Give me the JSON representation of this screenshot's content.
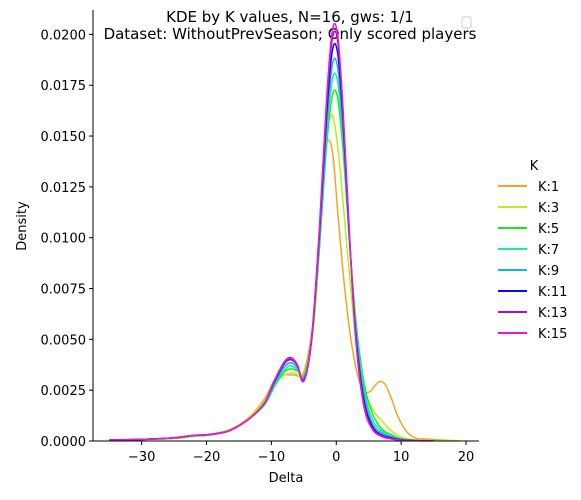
{
  "chart_data": {
    "type": "line",
    "title_line1": "KDE by K values, N=16, gws: 1/1",
    "title_line2": "Dataset: WithoutPrevSeason; Only scored players",
    "xlabel": "Delta",
    "ylabel": "Density",
    "xlim": [
      -37.5,
      22
    ],
    "ylim": [
      0,
      0.0212
    ],
    "x_ticks": [
      -30,
      -20,
      -10,
      0,
      10,
      20
    ],
    "x_tick_labels": [
      "−30",
      "−20",
      "−10",
      "0",
      "10",
      "20"
    ],
    "y_ticks": [
      0,
      0.0025,
      0.005,
      0.0075,
      0.01,
      0.0125,
      0.015,
      0.0175,
      0.02
    ],
    "y_tick_labels": [
      "0.0000",
      "0.0025",
      "0.0050",
      "0.0075",
      "0.0100",
      "0.0125",
      "0.0150",
      "0.0175",
      "0.0200"
    ],
    "legend_title": "K",
    "legend_position": "right",
    "series": [
      {
        "name": "K:1",
        "color": "#f5a41d",
        "points": [
          [
            -35,
            5e-05
          ],
          [
            -30,
            8e-05
          ],
          [
            -25,
            0.00012
          ],
          [
            -22,
            0.00022
          ],
          [
            -20,
            0.0003
          ],
          [
            -17,
            0.0005
          ],
          [
            -15,
            0.0008
          ],
          [
            -13,
            0.0013
          ],
          [
            -11,
            0.0021
          ],
          [
            -9.5,
            0.003
          ],
          [
            -8,
            0.00325
          ],
          [
            -6.5,
            0.00325
          ],
          [
            -5,
            0.0034
          ],
          [
            -3.5,
            0.006
          ],
          [
            -2.5,
            0.01
          ],
          [
            -1.8,
            0.014
          ],
          [
            -1.2,
            0.0148
          ],
          [
            -0.5,
            0.014
          ],
          [
            0.3,
            0.011
          ],
          [
            1.3,
            0.0075
          ],
          [
            2.5,
            0.0045
          ],
          [
            3.8,
            0.0027
          ],
          [
            5,
            0.0024
          ],
          [
            6.5,
            0.0029
          ],
          [
            7.5,
            0.0028
          ],
          [
            8.5,
            0.0021
          ],
          [
            9.5,
            0.0012
          ],
          [
            11,
            0.0004
          ],
          [
            12.5,
            0.00012
          ],
          [
            14,
            0.0001
          ],
          [
            16,
            5e-05
          ],
          [
            19,
            1e-05
          ]
        ]
      },
      {
        "name": "K:3",
        "color": "#b4f30f",
        "points": [
          [
            -35,
            5e-05
          ],
          [
            -30,
            8e-05
          ],
          [
            -25,
            0.00013
          ],
          [
            -22,
            0.00022
          ],
          [
            -20,
            0.00028
          ],
          [
            -17,
            0.00048
          ],
          [
            -15,
            0.00078
          ],
          [
            -13,
            0.00128
          ],
          [
            -11,
            0.002
          ],
          [
            -9.5,
            0.00285
          ],
          [
            -8,
            0.00325
          ],
          [
            -6.5,
            0.00335
          ],
          [
            -5,
            0.0033
          ],
          [
            -3.5,
            0.0056
          ],
          [
            -2.5,
            0.01
          ],
          [
            -1.6,
            0.0145
          ],
          [
            -0.9,
            0.016
          ],
          [
            -0.2,
            0.0155
          ],
          [
            0.7,
            0.013
          ],
          [
            1.8,
            0.009
          ],
          [
            3,
            0.005
          ],
          [
            4.2,
            0.0027
          ],
          [
            5.5,
            0.0016
          ],
          [
            7,
            0.001
          ],
          [
            8.5,
            0.0005
          ],
          [
            10,
            0.0002
          ],
          [
            12,
            6e-05
          ],
          [
            15,
            2e-05
          ],
          [
            19,
            1e-05
          ]
        ]
      },
      {
        "name": "K:5",
        "color": "#1ee81a",
        "points": [
          [
            -35,
            5e-05
          ],
          [
            -30,
            8e-05
          ],
          [
            -25,
            0.00014
          ],
          [
            -22,
            0.00025
          ],
          [
            -20,
            0.00028
          ],
          [
            -17,
            0.00045
          ],
          [
            -15,
            0.00075
          ],
          [
            -13,
            0.0012
          ],
          [
            -11,
            0.0018
          ],
          [
            -9.5,
            0.0027
          ],
          [
            -8,
            0.0034
          ],
          [
            -7,
            0.00355
          ],
          [
            -6,
            0.00345
          ],
          [
            -5,
            0.0032
          ],
          [
            -3.8,
            0.005
          ],
          [
            -2.6,
            0.0095
          ],
          [
            -1.5,
            0.0145
          ],
          [
            -0.6,
            0.017
          ],
          [
            0.2,
            0.0169
          ],
          [
            1,
            0.0145
          ],
          [
            2,
            0.01
          ],
          [
            3,
            0.006
          ],
          [
            4.2,
            0.003
          ],
          [
            5.5,
            0.0014
          ],
          [
            7,
            0.0006
          ],
          [
            8.5,
            0.0003
          ],
          [
            10,
            0.00012
          ],
          [
            12,
            4e-05
          ],
          [
            15,
            1e-05
          ]
        ]
      },
      {
        "name": "K:7",
        "color": "#14f093",
        "points": [
          [
            -35,
            5e-05
          ],
          [
            -30,
            8e-05
          ],
          [
            -25,
            0.00015
          ],
          [
            -22,
            0.00025
          ],
          [
            -20,
            0.00028
          ],
          [
            -17,
            0.00045
          ],
          [
            -15,
            0.00075
          ],
          [
            -13,
            0.0012
          ],
          [
            -11,
            0.0018
          ],
          [
            -9.5,
            0.00275
          ],
          [
            -8,
            0.0035
          ],
          [
            -7,
            0.0037
          ],
          [
            -6,
            0.0035
          ],
          [
            -5,
            0.0031
          ],
          [
            -3.8,
            0.005
          ],
          [
            -2.6,
            0.0098
          ],
          [
            -1.5,
            0.015
          ],
          [
            -0.6,
            0.0178
          ],
          [
            0.2,
            0.0177
          ],
          [
            1,
            0.015
          ],
          [
            2,
            0.01
          ],
          [
            3,
            0.0058
          ],
          [
            4.2,
            0.0027
          ],
          [
            5.5,
            0.0011
          ],
          [
            7,
            0.0005
          ],
          [
            8.5,
            0.00025
          ],
          [
            10,
            0.0001
          ],
          [
            12,
            3e-05
          ],
          [
            15,
            1e-05
          ]
        ]
      },
      {
        "name": "K:9",
        "color": "#12b4e6",
        "points": [
          [
            -35,
            5e-05
          ],
          [
            -30,
            8e-05
          ],
          [
            -25,
            0.00015
          ],
          [
            -22,
            0.00027
          ],
          [
            -20,
            0.0003
          ],
          [
            -17,
            0.00045
          ],
          [
            -15,
            0.00075
          ],
          [
            -13,
            0.0012
          ],
          [
            -11,
            0.00185
          ],
          [
            -9.5,
            0.00285
          ],
          [
            -8,
            0.00365
          ],
          [
            -7,
            0.00385
          ],
          [
            -6,
            0.0036
          ],
          [
            -5,
            0.00305
          ],
          [
            -3.8,
            0.005
          ],
          [
            -2.6,
            0.01
          ],
          [
            -1.5,
            0.0155
          ],
          [
            -0.6,
            0.0185
          ],
          [
            0.2,
            0.0184
          ],
          [
            1,
            0.0155
          ],
          [
            2,
            0.01
          ],
          [
            3,
            0.0055
          ],
          [
            4.2,
            0.0024
          ],
          [
            5.5,
            0.0009
          ],
          [
            7,
            0.0004
          ],
          [
            8.5,
            0.0002
          ],
          [
            10,
            8e-05
          ],
          [
            12,
            2e-05
          ],
          [
            15,
            1e-05
          ]
        ]
      },
      {
        "name": "K:11",
        "color": "#0a0af5",
        "points": [
          [
            -35,
            5e-05
          ],
          [
            -30,
            8e-05
          ],
          [
            -25,
            0.00016
          ],
          [
            -22,
            0.00028
          ],
          [
            -20,
            0.0003
          ],
          [
            -17,
            0.00045
          ],
          [
            -15,
            0.00075
          ],
          [
            -13,
            0.0012
          ],
          [
            -11,
            0.0019
          ],
          [
            -9.5,
            0.00295
          ],
          [
            -8,
            0.0038
          ],
          [
            -7,
            0.004
          ],
          [
            -6,
            0.0037
          ],
          [
            -5,
            0.003
          ],
          [
            -3.8,
            0.005
          ],
          [
            -2.6,
            0.0102
          ],
          [
            -1.5,
            0.016
          ],
          [
            -0.6,
            0.0192
          ],
          [
            0.2,
            0.0191
          ],
          [
            1,
            0.016
          ],
          [
            2,
            0.0102
          ],
          [
            3,
            0.0053
          ],
          [
            4.2,
            0.0021
          ],
          [
            5.5,
            0.00075
          ],
          [
            7,
            0.0003
          ],
          [
            8.5,
            0.00015
          ],
          [
            10,
            6e-05
          ],
          [
            12,
            2e-05
          ],
          [
            15,
            1e-05
          ]
        ]
      },
      {
        "name": "K:13",
        "color": "#9b12e0",
        "points": [
          [
            -35,
            5e-05
          ],
          [
            -30,
            8e-05
          ],
          [
            -25,
            0.00016
          ],
          [
            -22,
            0.00028
          ],
          [
            -20,
            0.0003
          ],
          [
            -17,
            0.00045
          ],
          [
            -15,
            0.00075
          ],
          [
            -13,
            0.0012
          ],
          [
            -11,
            0.0019
          ],
          [
            -9.5,
            0.003
          ],
          [
            -8,
            0.0039
          ],
          [
            -7,
            0.0041
          ],
          [
            -6,
            0.00375
          ],
          [
            -5,
            0.00295
          ],
          [
            -3.8,
            0.005
          ],
          [
            -2.6,
            0.0103
          ],
          [
            -1.5,
            0.0165
          ],
          [
            -0.6,
            0.0198
          ],
          [
            0.2,
            0.0197
          ],
          [
            1,
            0.0164
          ],
          [
            2,
            0.0103
          ],
          [
            3,
            0.0051
          ],
          [
            4.2,
            0.0019
          ],
          [
            5.5,
            0.00065
          ],
          [
            7,
            0.00025
          ],
          [
            8.5,
            0.00012
          ],
          [
            10,
            5e-05
          ],
          [
            12,
            2e-05
          ],
          [
            15,
            1e-05
          ]
        ]
      },
      {
        "name": "K:15",
        "color": "#f014d6",
        "points": [
          [
            -35,
            5e-05
          ],
          [
            -30,
            8e-05
          ],
          [
            -25,
            0.00016
          ],
          [
            -22,
            0.00028
          ],
          [
            -20,
            0.0003
          ],
          [
            -17,
            0.00045
          ],
          [
            -15,
            0.00075
          ],
          [
            -13,
            0.0012
          ],
          [
            -11,
            0.0019
          ],
          [
            -9.5,
            0.003
          ],
          [
            -8,
            0.00385
          ],
          [
            -7,
            0.00405
          ],
          [
            -6,
            0.0037
          ],
          [
            -5,
            0.00295
          ],
          [
            -3.8,
            0.0051
          ],
          [
            -2.6,
            0.0105
          ],
          [
            -1.5,
            0.0168
          ],
          [
            -0.6,
            0.0202
          ],
          [
            0.2,
            0.02
          ],
          [
            1,
            0.0166
          ],
          [
            2,
            0.0104
          ],
          [
            3,
            0.005
          ],
          [
            4.2,
            0.0018
          ],
          [
            5.5,
            0.0006
          ],
          [
            7,
            0.00022
          ],
          [
            8.5,
            0.0001
          ],
          [
            10,
            4e-05
          ],
          [
            12,
            1e-05
          ],
          [
            15,
            1e-05
          ]
        ]
      }
    ]
  }
}
